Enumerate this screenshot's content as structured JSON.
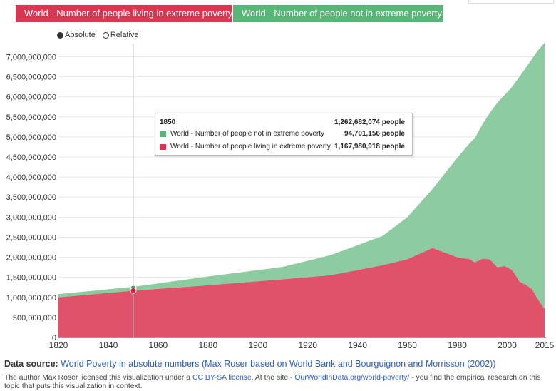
{
  "legend": {
    "items": [
      {
        "label": "World - Number of people living in extreme poverty",
        "color": "#d73751"
      },
      {
        "label": "World - Number of people not in extreme poverty",
        "color": "#58b778"
      }
    ]
  },
  "mode": {
    "absolute_label": "Absolute",
    "relative_label": "Relative",
    "selected": "Absolute"
  },
  "tooltip": {
    "year": "1850",
    "total": "1,262,682,074 people",
    "rows": [
      {
        "label": "World - Number of people not in extreme poverty",
        "value": "94,701,156 people",
        "color": "#58b778"
      },
      {
        "label": "World - Number of people living in extreme poverty",
        "value": "1,167,980,918 people",
        "color": "#d73751"
      }
    ]
  },
  "source": {
    "prefix": "Data source:",
    "link_text": "World Poverty in absolute numbers (Max Roser based on World Bank and Bourguignon and Morrisson (2002))"
  },
  "license": {
    "text1": "The author Max Roser licensed this visualization under a ",
    "link1": "CC BY-SA license",
    "text2": ". At the site - ",
    "link2": "OurWorldInData.org/world-poverty/",
    "text3": " - you find the empirical research on this topic that puts this visualization in context."
  },
  "chart_data": {
    "type": "area",
    "stacked": true,
    "hover_year": 1850,
    "x": [
      1820,
      1850,
      1880,
      1910,
      1929,
      1950,
      1960,
      1970,
      1980,
      1985,
      1987,
      1990,
      1993,
      1996,
      1999,
      2002,
      2005,
      2008,
      2010,
      2012,
      2015
    ],
    "series": [
      {
        "name": "World - Number of people living in extreme poverty",
        "color": "#e0526a",
        "values": [
          1000000000,
          1167980918,
          1300000000,
          1450000000,
          1550000000,
          1800000000,
          1950000000,
          2230000000,
          2000000000,
          1950000000,
          1870000000,
          1960000000,
          1950000000,
          1750000000,
          1780000000,
          1680000000,
          1390000000,
          1290000000,
          1200000000,
          980000000,
          700000000
        ]
      },
      {
        "name": "World - Number of people not in extreme poverty",
        "color": "#8ccca0",
        "values": [
          82000000,
          94701156,
          220000000,
          310000000,
          500000000,
          730000000,
          1050000000,
          1470000000,
          2480000000,
          2900000000,
          3100000000,
          3350000000,
          3650000000,
          4100000000,
          4270000000,
          4570000000,
          5120000000,
          5480000000,
          5750000000,
          6150000000,
          6650000000
        ]
      }
    ],
    "xlim": [
      1820,
      2015
    ],
    "ylim": [
      0,
      7400000000
    ],
    "xticks": [
      1820,
      1840,
      1860,
      1880,
      1900,
      1920,
      1940,
      1960,
      1980,
      2000,
      2015
    ],
    "yticks": [
      0,
      500000000,
      1000000000,
      1500000000,
      2000000000,
      2500000000,
      3000000000,
      3500000000,
      4000000000,
      4500000000,
      5000000000,
      5500000000,
      6000000000,
      6500000000,
      7000000000
    ],
    "ytick_labels": [
      "0",
      "500,000,000",
      "1,000,000,000",
      "1,500,000,000",
      "2,000,000,000",
      "2,500,000,000",
      "3,000,000,000",
      "3,500,000,000",
      "4,000,000,000",
      "4,500,000,000",
      "5,000,000,000",
      "5,500,000,000",
      "6,000,000,000",
      "6,500,000,000",
      "7,000,000,000"
    ]
  }
}
